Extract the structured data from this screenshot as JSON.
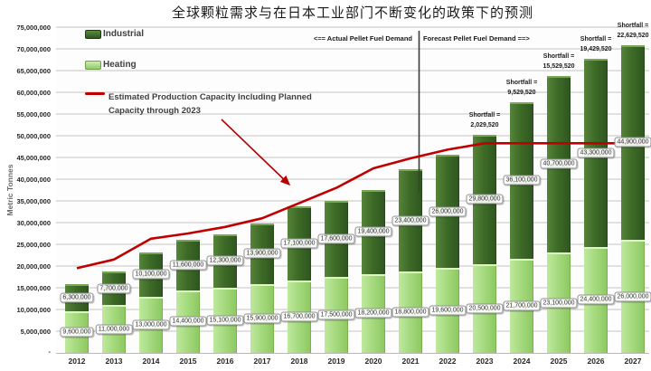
{
  "chart_data": {
    "type": "bar",
    "stacked": true,
    "title": "全球颗粒需求与在日本工业部门不断变化的政策下的预测",
    "ylabel": "Metric Tonnes",
    "ylim": [
      0,
      75000000
    ],
    "ytick_step": 5000000,
    "zero_tick_label": "-",
    "grid": true,
    "categories": [
      "2012",
      "2013",
      "2014",
      "2015",
      "2016",
      "2017",
      "2018",
      "2019",
      "2020",
      "2021",
      "2022",
      "2023",
      "2024",
      "2025",
      "2026",
      "2027"
    ],
    "series": [
      {
        "name": "Heating",
        "color": "#a6da7f",
        "values": [
          9600000,
          11000000,
          13000000,
          14400000,
          15100000,
          15900000,
          16700000,
          17500000,
          18200000,
          18800000,
          19600000,
          20500000,
          21700000,
          23100000,
          24400000,
          26000000
        ]
      },
      {
        "name": "Industrial",
        "color": "#3d6b27",
        "values": [
          6300000,
          7700000,
          10100000,
          11600000,
          12300000,
          13900000,
          17100000,
          17600000,
          19400000,
          23400000,
          26000000,
          29800000,
          36100000,
          40700000,
          43300000,
          44900000
        ]
      }
    ],
    "capacity_line": {
      "label": "Estimated Production Capacity Including Planned Capacity through 2023",
      "color": "#c00000",
      "values": [
        19500000,
        21500000,
        26300000,
        27500000,
        29000000,
        31000000,
        34500000,
        38000000,
        42500000,
        44800000,
        46800000,
        48270480,
        48270480,
        48270480,
        48270480,
        48270480
      ]
    },
    "shortfall_prefix": "Shortfall =",
    "shortfalls": [
      {
        "category": "2023",
        "value": 2029520
      },
      {
        "category": "2024",
        "value": 9529520
      },
      {
        "category": "2025",
        "value": 15529520
      },
      {
        "category": "2026",
        "value": 19429520
      },
      {
        "category": "2027",
        "value": 22629520
      }
    ],
    "divider_between": [
      "2021",
      "2022"
    ],
    "annotations": {
      "actual": "<== Actual Pellet Fuel Demand",
      "forecast": "Forecast Pellet Fuel Demand ==>"
    }
  },
  "legend": {
    "industrial": "Industrial",
    "heating": "Heating",
    "capacity_line_1": "Estimated Production Capacity Including Planned",
    "capacity_line_2": "Capacity through 2023"
  }
}
